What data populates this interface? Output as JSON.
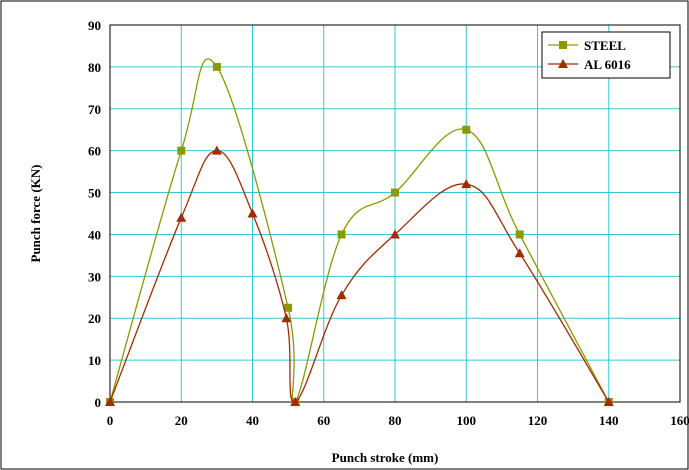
{
  "chart_data": {
    "type": "line",
    "xlabel": "Punch stroke (mm)",
    "ylabel": "Punch force (KN)",
    "xlim": [
      0,
      160
    ],
    "ylim": [
      0,
      90
    ],
    "x_ticks": [
      0,
      20,
      40,
      60,
      80,
      100,
      120,
      140,
      160
    ],
    "y_ticks": [
      0,
      10,
      20,
      30,
      40,
      50,
      60,
      70,
      80,
      90
    ],
    "grid": true,
    "legend_position": "top-right",
    "series": [
      {
        "name": "STEEL",
        "color": "#8a9a00",
        "marker": "square",
        "x": [
          0,
          20,
          30,
          50,
          52,
          65,
          80,
          100,
          115,
          140
        ],
        "y": [
          0,
          60,
          80,
          22.5,
          0,
          40,
          50,
          65,
          40,
          0
        ]
      },
      {
        "name": "AL 6016",
        "color": "#a52a00",
        "marker": "triangle",
        "x": [
          0,
          20,
          30,
          40,
          49.5,
          52,
          65,
          80,
          100,
          115,
          140
        ],
        "y": [
          0,
          44,
          60,
          45,
          20,
          0,
          25.5,
          40,
          52,
          35.5,
          0
        ]
      }
    ]
  }
}
